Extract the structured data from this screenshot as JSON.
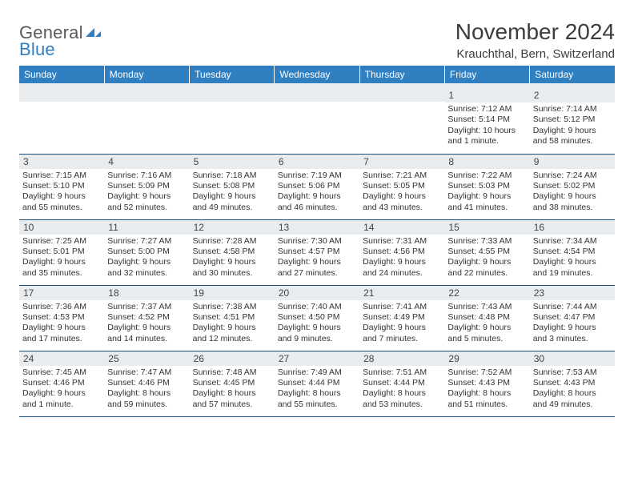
{
  "logo": {
    "text_a": "General",
    "text_b": "Blue"
  },
  "title": "November 2024",
  "location": "Krauchthal, Bern, Switzerland",
  "colors": {
    "header_bg": "#2f7fc1",
    "header_text": "#ffffff",
    "daynum_bg": "#e9ecef",
    "border": "#1e4d7a",
    "text": "#333333"
  },
  "day_headers": [
    "Sunday",
    "Monday",
    "Tuesday",
    "Wednesday",
    "Thursday",
    "Friday",
    "Saturday"
  ],
  "weeks": [
    [
      {
        "n": "",
        "sunrise": "",
        "sunset": "",
        "daylight": ""
      },
      {
        "n": "",
        "sunrise": "",
        "sunset": "",
        "daylight": ""
      },
      {
        "n": "",
        "sunrise": "",
        "sunset": "",
        "daylight": ""
      },
      {
        "n": "",
        "sunrise": "",
        "sunset": "",
        "daylight": ""
      },
      {
        "n": "",
        "sunrise": "",
        "sunset": "",
        "daylight": ""
      },
      {
        "n": "1",
        "sunrise": "Sunrise: 7:12 AM",
        "sunset": "Sunset: 5:14 PM",
        "daylight": "Daylight: 10 hours and 1 minute."
      },
      {
        "n": "2",
        "sunrise": "Sunrise: 7:14 AM",
        "sunset": "Sunset: 5:12 PM",
        "daylight": "Daylight: 9 hours and 58 minutes."
      }
    ],
    [
      {
        "n": "3",
        "sunrise": "Sunrise: 7:15 AM",
        "sunset": "Sunset: 5:10 PM",
        "daylight": "Daylight: 9 hours and 55 minutes."
      },
      {
        "n": "4",
        "sunrise": "Sunrise: 7:16 AM",
        "sunset": "Sunset: 5:09 PM",
        "daylight": "Daylight: 9 hours and 52 minutes."
      },
      {
        "n": "5",
        "sunrise": "Sunrise: 7:18 AM",
        "sunset": "Sunset: 5:08 PM",
        "daylight": "Daylight: 9 hours and 49 minutes."
      },
      {
        "n": "6",
        "sunrise": "Sunrise: 7:19 AM",
        "sunset": "Sunset: 5:06 PM",
        "daylight": "Daylight: 9 hours and 46 minutes."
      },
      {
        "n": "7",
        "sunrise": "Sunrise: 7:21 AM",
        "sunset": "Sunset: 5:05 PM",
        "daylight": "Daylight: 9 hours and 43 minutes."
      },
      {
        "n": "8",
        "sunrise": "Sunrise: 7:22 AM",
        "sunset": "Sunset: 5:03 PM",
        "daylight": "Daylight: 9 hours and 41 minutes."
      },
      {
        "n": "9",
        "sunrise": "Sunrise: 7:24 AM",
        "sunset": "Sunset: 5:02 PM",
        "daylight": "Daylight: 9 hours and 38 minutes."
      }
    ],
    [
      {
        "n": "10",
        "sunrise": "Sunrise: 7:25 AM",
        "sunset": "Sunset: 5:01 PM",
        "daylight": "Daylight: 9 hours and 35 minutes."
      },
      {
        "n": "11",
        "sunrise": "Sunrise: 7:27 AM",
        "sunset": "Sunset: 5:00 PM",
        "daylight": "Daylight: 9 hours and 32 minutes."
      },
      {
        "n": "12",
        "sunrise": "Sunrise: 7:28 AM",
        "sunset": "Sunset: 4:58 PM",
        "daylight": "Daylight: 9 hours and 30 minutes."
      },
      {
        "n": "13",
        "sunrise": "Sunrise: 7:30 AM",
        "sunset": "Sunset: 4:57 PM",
        "daylight": "Daylight: 9 hours and 27 minutes."
      },
      {
        "n": "14",
        "sunrise": "Sunrise: 7:31 AM",
        "sunset": "Sunset: 4:56 PM",
        "daylight": "Daylight: 9 hours and 24 minutes."
      },
      {
        "n": "15",
        "sunrise": "Sunrise: 7:33 AM",
        "sunset": "Sunset: 4:55 PM",
        "daylight": "Daylight: 9 hours and 22 minutes."
      },
      {
        "n": "16",
        "sunrise": "Sunrise: 7:34 AM",
        "sunset": "Sunset: 4:54 PM",
        "daylight": "Daylight: 9 hours and 19 minutes."
      }
    ],
    [
      {
        "n": "17",
        "sunrise": "Sunrise: 7:36 AM",
        "sunset": "Sunset: 4:53 PM",
        "daylight": "Daylight: 9 hours and 17 minutes."
      },
      {
        "n": "18",
        "sunrise": "Sunrise: 7:37 AM",
        "sunset": "Sunset: 4:52 PM",
        "daylight": "Daylight: 9 hours and 14 minutes."
      },
      {
        "n": "19",
        "sunrise": "Sunrise: 7:38 AM",
        "sunset": "Sunset: 4:51 PM",
        "daylight": "Daylight: 9 hours and 12 minutes."
      },
      {
        "n": "20",
        "sunrise": "Sunrise: 7:40 AM",
        "sunset": "Sunset: 4:50 PM",
        "daylight": "Daylight: 9 hours and 9 minutes."
      },
      {
        "n": "21",
        "sunrise": "Sunrise: 7:41 AM",
        "sunset": "Sunset: 4:49 PM",
        "daylight": "Daylight: 9 hours and 7 minutes."
      },
      {
        "n": "22",
        "sunrise": "Sunrise: 7:43 AM",
        "sunset": "Sunset: 4:48 PM",
        "daylight": "Daylight: 9 hours and 5 minutes."
      },
      {
        "n": "23",
        "sunrise": "Sunrise: 7:44 AM",
        "sunset": "Sunset: 4:47 PM",
        "daylight": "Daylight: 9 hours and 3 minutes."
      }
    ],
    [
      {
        "n": "24",
        "sunrise": "Sunrise: 7:45 AM",
        "sunset": "Sunset: 4:46 PM",
        "daylight": "Daylight: 9 hours and 1 minute."
      },
      {
        "n": "25",
        "sunrise": "Sunrise: 7:47 AM",
        "sunset": "Sunset: 4:46 PM",
        "daylight": "Daylight: 8 hours and 59 minutes."
      },
      {
        "n": "26",
        "sunrise": "Sunrise: 7:48 AM",
        "sunset": "Sunset: 4:45 PM",
        "daylight": "Daylight: 8 hours and 57 minutes."
      },
      {
        "n": "27",
        "sunrise": "Sunrise: 7:49 AM",
        "sunset": "Sunset: 4:44 PM",
        "daylight": "Daylight: 8 hours and 55 minutes."
      },
      {
        "n": "28",
        "sunrise": "Sunrise: 7:51 AM",
        "sunset": "Sunset: 4:44 PM",
        "daylight": "Daylight: 8 hours and 53 minutes."
      },
      {
        "n": "29",
        "sunrise": "Sunrise: 7:52 AM",
        "sunset": "Sunset: 4:43 PM",
        "daylight": "Daylight: 8 hours and 51 minutes."
      },
      {
        "n": "30",
        "sunrise": "Sunrise: 7:53 AM",
        "sunset": "Sunset: 4:43 PM",
        "daylight": "Daylight: 8 hours and 49 minutes."
      }
    ]
  ]
}
